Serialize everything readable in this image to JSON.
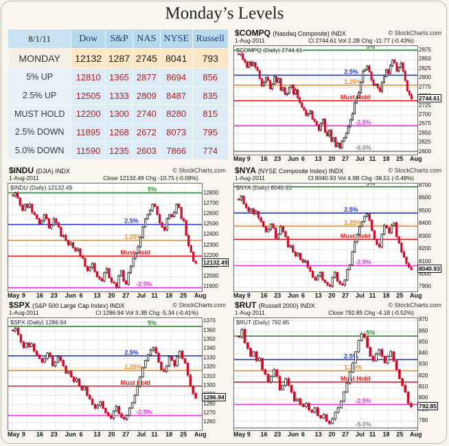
{
  "title": "Monday’s Levels",
  "table": {
    "header": [
      "8/1/11",
      "Dow",
      "S&P",
      "NAS",
      "NYSE",
      "Russell"
    ],
    "rows": [
      {
        "label": "MONDAY",
        "values": [
          "12132",
          "1287",
          "2745",
          "8041",
          "793"
        ],
        "kind": "mon"
      },
      {
        "label": "5% UP",
        "values": [
          "12810",
          "1365",
          "2877",
          "8694",
          "856"
        ],
        "kind": "lvl"
      },
      {
        "label": "2.5% UP",
        "values": [
          "12505",
          "1333",
          "2809",
          "8487",
          "835"
        ],
        "kind": "lvl"
      },
      {
        "label": "MUST HOLD",
        "values": [
          "12200",
          "1300",
          "2740",
          "8280",
          "815"
        ],
        "kind": "lvl"
      },
      {
        "label": "2.5% DOWN",
        "values": [
          "11895",
          "1268",
          "2672",
          "8073",
          "795"
        ],
        "kind": "lvl"
      },
      {
        "label": "5.0% DOWN",
        "values": [
          "11590",
          "1235",
          "2603",
          "7866",
          "774"
        ],
        "kind": "lvl"
      }
    ]
  },
  "chart_data": [
    {
      "id": "compq",
      "type": "candlestick",
      "symbol": "$COMPQ",
      "subtitle": "(Nasdaq Composite) INDX",
      "source": "© StockCharts.com",
      "date": "1-Aug-2011",
      "stats": "Cl 2744.61  Vol 2.2B  Chg -11.77 (-0.43%)",
      "inner_label": "$COMPQ (Daily) 2744.61",
      "current": "2744.61",
      "ylim": [
        2594,
        2888
      ],
      "yticks": [
        2875,
        2850,
        2825,
        2800,
        2775,
        2750,
        2725,
        2700,
        2675,
        2650,
        2625,
        2600
      ],
      "xticks": [
        "May",
        "9",
        "16",
        "23",
        "Jun",
        "6",
        "13",
        "20",
        "27",
        "Jul",
        "11",
        "18",
        "25",
        "Aug"
      ],
      "levels": [
        {
          "label": "5%",
          "value": 2877,
          "color": "#2e8b2e"
        },
        {
          "label": "2.5%",
          "value": 2809,
          "color": "#1f38c8"
        },
        {
          "label": "1.25%",
          "value": 2782,
          "color": "#f08a24"
        },
        {
          "label": "Must Hold",
          "value": 2740,
          "color": "#e01818"
        },
        {
          "label": "-2.5%",
          "value": 2672,
          "color": "#e233d8"
        },
        {
          "label": "-5.0%",
          "value": 2603,
          "color": "#888888"
        }
      ],
      "closes": [
        2865,
        2872,
        2852,
        2845,
        2830,
        2845,
        2835,
        2843,
        2830,
        2822,
        2800,
        2780,
        2790,
        2803,
        2795,
        2772,
        2785,
        2805,
        2790,
        2800,
        2768,
        2775,
        2757,
        2760,
        2775,
        2782,
        2758,
        2770,
        2748,
        2735,
        2722,
        2715,
        2700,
        2705,
        2712,
        2690,
        2684,
        2675,
        2660,
        2678,
        2690,
        2655,
        2645,
        2660,
        2630,
        2640,
        2616,
        2625,
        2612,
        2630,
        2640,
        2652,
        2670,
        2688,
        2705,
        2735,
        2748,
        2762,
        2790,
        2820,
        2825,
        2834,
        2818,
        2796,
        2782,
        2785,
        2775,
        2765,
        2790,
        2805,
        2824,
        2814,
        2835,
        2850,
        2843,
        2820,
        2830,
        2842,
        2820,
        2795,
        2766,
        2756,
        2744.61
      ]
    },
    {
      "id": "indu",
      "type": "candlestick",
      "symbol": "$INDU",
      "subtitle": "(DJIA) INDX",
      "source": "© StockCharts.com",
      "date": "1-Aug-2011",
      "stats": "Close 12132.49  Chg -10.75 (-0.09%)",
      "inner_label": "$INDU (Daily) 12132.49",
      "current": "12132.49",
      "ylim": [
        11860,
        12900
      ],
      "yticks": [
        12800,
        12700,
        12600,
        12500,
        12400,
        12300,
        12200,
        12100,
        12000,
        11900
      ],
      "xticks": [
        "May",
        "9",
        "16",
        "23",
        "Jun",
        "6",
        "13",
        "20",
        "27",
        "Jul",
        "11",
        "18",
        "25",
        "Aug"
      ],
      "levels": [
        {
          "label": "5%",
          "value": 12810,
          "color": "#2e8b2e"
        },
        {
          "label": "2.5%",
          "value": 12505,
          "color": "#1f38c8"
        },
        {
          "label": "1.25%",
          "value": 12352,
          "color": "#f08a24"
        },
        {
          "label": "Must Hold",
          "value": 12200,
          "color": "#e01818"
        },
        {
          "label": "-2.5%",
          "value": 11895,
          "color": "#e233d8"
        }
      ],
      "closes": [
        12780,
        12810,
        12760,
        12690,
        12640,
        12700,
        12670,
        12700,
        12620,
        12600,
        12560,
        12510,
        12540,
        12600,
        12560,
        12470,
        12500,
        12560,
        12520,
        12480,
        12390,
        12400,
        12350,
        12310,
        12330,
        12280,
        12250,
        12270,
        12200,
        12180,
        12100,
        12060,
        12090,
        12130,
        12050,
        12000,
        11980,
        11960,
        12040,
        12080,
        11990,
        11950,
        11940,
        11900,
        12010,
        12060,
        11960,
        11930,
        12040,
        12100,
        12180,
        12230,
        12290,
        12380,
        12480,
        12560,
        12600,
        12640,
        12700,
        12680,
        12600,
        12520,
        12480,
        12450,
        12560,
        12600,
        12580,
        12620,
        12700,
        12670,
        12560,
        12540,
        12400,
        12300,
        12240,
        12150,
        12132.49
      ]
    },
    {
      "id": "nya",
      "type": "candlestick",
      "symbol": "$NYA",
      "subtitle": "(NYSE Composite Index) INDX",
      "source": "© StockCharts.com",
      "date": "1-Aug-2011",
      "stats": "Cl 8040.93  Vol 4.9B  Chg -38.51 (-0.48%)",
      "inner_label": "$NYA (Daily) 8040.93",
      "current": "8040.93",
      "ylim": [
        7870,
        8720
      ],
      "yticks": [
        8700,
        8600,
        8500,
        8400,
        8300,
        8200,
        8100,
        8000,
        7900
      ],
      "xticks": [
        "May",
        "9",
        "16",
        "23",
        "Jun",
        "6",
        "13",
        "20",
        "27",
        "Jul",
        "11",
        "18",
        "25",
        "Aug"
      ],
      "levels": [
        {
          "label": "5%",
          "value": 8694,
          "color": "#2e8b2e"
        },
        {
          "label": "2.5%",
          "value": 8487,
          "color": "#1f38c8"
        },
        {
          "label": "1.25%",
          "value": 8384,
          "color": "#f08a24"
        },
        {
          "label": "Must Hold",
          "value": 8280,
          "color": "#e01818"
        },
        {
          "label": "-2.5%",
          "value": 8073,
          "color": "#e233d8"
        }
      ],
      "closes": [
        8590,
        8620,
        8560,
        8530,
        8500,
        8520,
        8480,
        8500,
        8450,
        8420,
        8380,
        8340,
        8360,
        8400,
        8370,
        8290,
        8320,
        8380,
        8340,
        8300,
        8220,
        8230,
        8180,
        8150,
        8170,
        8120,
        8100,
        8110,
        8060,
        8030,
        7980,
        7960,
        7990,
        8020,
        7960,
        7940,
        7920,
        7910,
        7980,
        8020,
        7950,
        7930,
        7920,
        7960,
        8040,
        8080,
        8180,
        8260,
        8320,
        8380,
        8420,
        8460,
        8480,
        8430,
        8350,
        8280,
        8240,
        8220,
        8320,
        8390,
        8370,
        8330,
        8390,
        8410,
        8300,
        8250,
        8180,
        8140,
        8090,
        8060,
        8040.93
      ]
    },
    {
      "id": "spx",
      "type": "candlestick",
      "symbol": "$SPX",
      "subtitle": "(S&P 500 Large Cap Index) INDX",
      "source": "© StockCharts.com",
      "date": "1-Aug-2011",
      "stats": "Cl 1286.94  Vol 3.3B  Chg -5.34 (-0.41%)",
      "inner_label": "$SPX (Daily) 1286.94",
      "current": "1286.94",
      "ylim": [
        1252,
        1374
      ],
      "yticks": [
        1370,
        1360,
        1350,
        1340,
        1330,
        1320,
        1310,
        1300,
        1290,
        1280,
        1270,
        1260
      ],
      "xticks": [
        "May",
        "9",
        "16",
        "23",
        "Jun",
        "6",
        "13",
        "20",
        "27",
        "Jul",
        "11",
        "18",
        "25",
        "Aug"
      ],
      "levels": [
        {
          "label": "5%",
          "value": 1365,
          "color": "#2e8b2e"
        },
        {
          "label": "2.5%",
          "value": 1333,
          "color": "#1f38c8"
        },
        {
          "label": "1.25%",
          "value": 1317,
          "color": "#f08a24"
        },
        {
          "label": "Must Hold",
          "value": 1300,
          "color": "#e01818"
        },
        {
          "label": "-2.5%",
          "value": 1268,
          "color": "#e233d8"
        }
      ],
      "closes": [
        1360,
        1363,
        1356,
        1348,
        1342,
        1347,
        1343,
        1346,
        1338,
        1334,
        1330,
        1326,
        1330,
        1336,
        1332,
        1322,
        1326,
        1332,
        1328,
        1322,
        1314,
        1316,
        1310,
        1305,
        1308,
        1300,
        1296,
        1299,
        1290,
        1286,
        1280,
        1276,
        1279,
        1283,
        1276,
        1271,
        1268,
        1265,
        1273,
        1278,
        1270,
        1266,
        1264,
        1268,
        1276,
        1282,
        1290,
        1300,
        1310,
        1320,
        1328,
        1334,
        1339,
        1342,
        1336,
        1326,
        1318,
        1316,
        1322,
        1332,
        1328,
        1322,
        1332,
        1338,
        1330,
        1325,
        1312,
        1300,
        1292,
        1286.94
      ]
    },
    {
      "id": "rut",
      "type": "candlestick",
      "symbol": "$RUT",
      "subtitle": "(Russell 2000) INDX",
      "source": "© StockCharts.com",
      "date": "1-Aug-2011",
      "stats": "Close 792.85  Chg -4.18 (-0.52%)",
      "inner_label": "$RUT (Daily) 792.85",
      "current": "792.85",
      "ylim": [
        772,
        872
      ],
      "yticks": [
        870,
        860,
        850,
        840,
        830,
        820,
        810,
        800,
        790,
        780
      ],
      "xticks": [
        "May",
        "9",
        "16",
        "23",
        "Jun",
        "6",
        "13",
        "20",
        "27",
        "Jul",
        "11",
        "18",
        "25",
        "Aug"
      ],
      "levels": [
        {
          "label": "5%",
          "value": 856,
          "color": "#2e8b2e"
        },
        {
          "label": "2.5%",
          "value": 835,
          "color": "#1f38c8"
        },
        {
          "label": "1.25%",
          "value": 825,
          "color": "#f08a24"
        },
        {
          "label": "Must Hold",
          "value": 815,
          "color": "#e01818"
        },
        {
          "label": "-2.5%",
          "value": 795,
          "color": "#e233d8"
        },
        {
          "label": "-5.0%",
          "value": 774,
          "color": "#888888"
        }
      ],
      "closes": [
        855,
        862,
        850,
        845,
        838,
        842,
        834,
        836,
        826,
        822,
        815,
        820,
        826,
        820,
        808,
        812,
        818,
        812,
        806,
        798,
        800,
        795,
        793,
        796,
        790,
        788,
        792,
        785,
        783,
        786,
        780,
        778,
        782,
        788,
        792,
        798,
        806,
        814,
        824,
        832,
        842,
        852,
        858,
        855,
        846,
        838,
        834,
        840,
        844,
        838,
        832,
        838,
        842,
        834,
        826,
        818,
        812,
        806,
        796,
        792.85
      ]
    }
  ]
}
